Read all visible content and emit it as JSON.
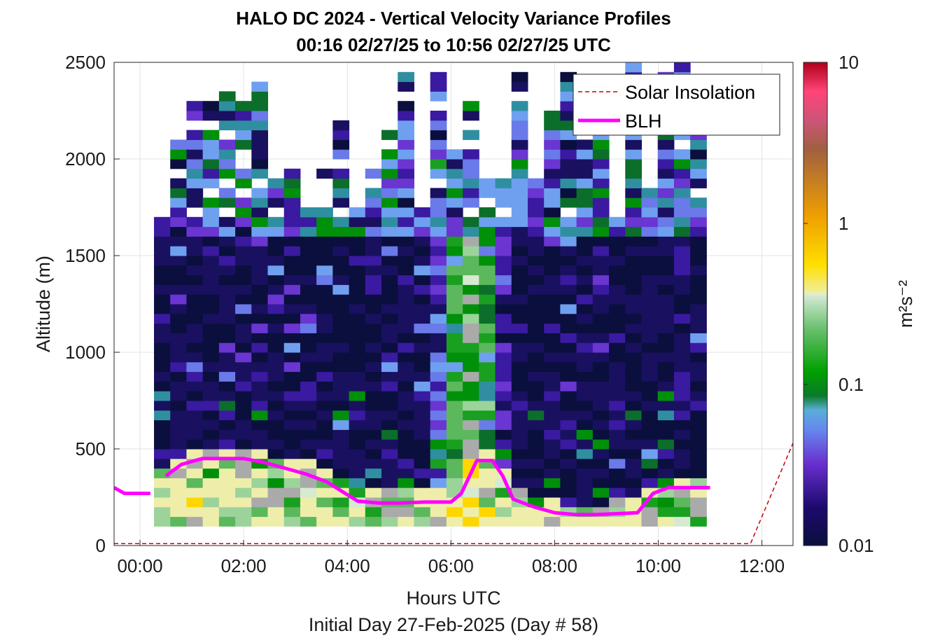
{
  "chart_data": {
    "type": "heatmap",
    "title": "HALO DC 2024 - Vertical Velocity Variance Profiles",
    "subtitle": "00:16 02/27/25 to 10:56 02/27/25  UTC",
    "xlabel": "Hours UTC",
    "xlabel2": "Initial Day 27-Feb-2025 (Day # 58)",
    "ylabel": "Altitude (m)",
    "colorbar_label": "m²s⁻²",
    "colorbar_scale": "log",
    "colorbar_range": [
      0.01,
      10
    ],
    "colorbar_ticks": [
      "10",
      "1",
      "0.1",
      "0.01"
    ],
    "x_range_hours": [
      -0.5,
      12.6
    ],
    "x_ticks": [
      "00:00",
      "02:00",
      "04:00",
      "06:00",
      "08:00",
      "10:00",
      "12:00"
    ],
    "y_range": [
      0,
      2500
    ],
    "y_ticks": [
      "0",
      "500",
      "1000",
      "1500",
      "2000",
      "2500"
    ],
    "grid": true,
    "legend_placement": "top-right",
    "legend": [
      {
        "name": "Solar Insolation",
        "color": "#cc0000",
        "style": "dashed"
      },
      {
        "name": "BLH",
        "color": "#ff00ff",
        "style": "solid"
      }
    ],
    "data_time_range_hours": [
      0.27,
      10.93
    ],
    "blh_hours": [
      -0.5,
      -0.3,
      -0.1,
      0.2,
      0.5,
      0.8,
      1.2,
      1.6,
      2.0,
      2.4,
      2.8,
      3.2,
      3.6,
      3.9,
      4.2,
      4.6,
      5.0,
      5.5,
      6.0,
      6.2,
      6.5,
      6.8,
      7.0,
      7.2,
      7.6,
      8.0,
      8.4,
      8.8,
      9.2,
      9.6,
      9.9,
      10.2,
      10.6,
      11.0
    ],
    "blh_m": [
      300,
      270,
      270,
      270,
      360,
      420,
      450,
      450,
      450,
      430,
      400,
      370,
      330,
      280,
      230,
      220,
      220,
      225,
      225,
      270,
      440,
      440,
      360,
      240,
      200,
      170,
      160,
      160,
      165,
      170,
      270,
      300,
      300,
      300
    ],
    "solar_hours": [
      -0.5,
      11.78,
      12.6
    ],
    "solar_m": [
      10,
      10,
      530
    ]
  }
}
